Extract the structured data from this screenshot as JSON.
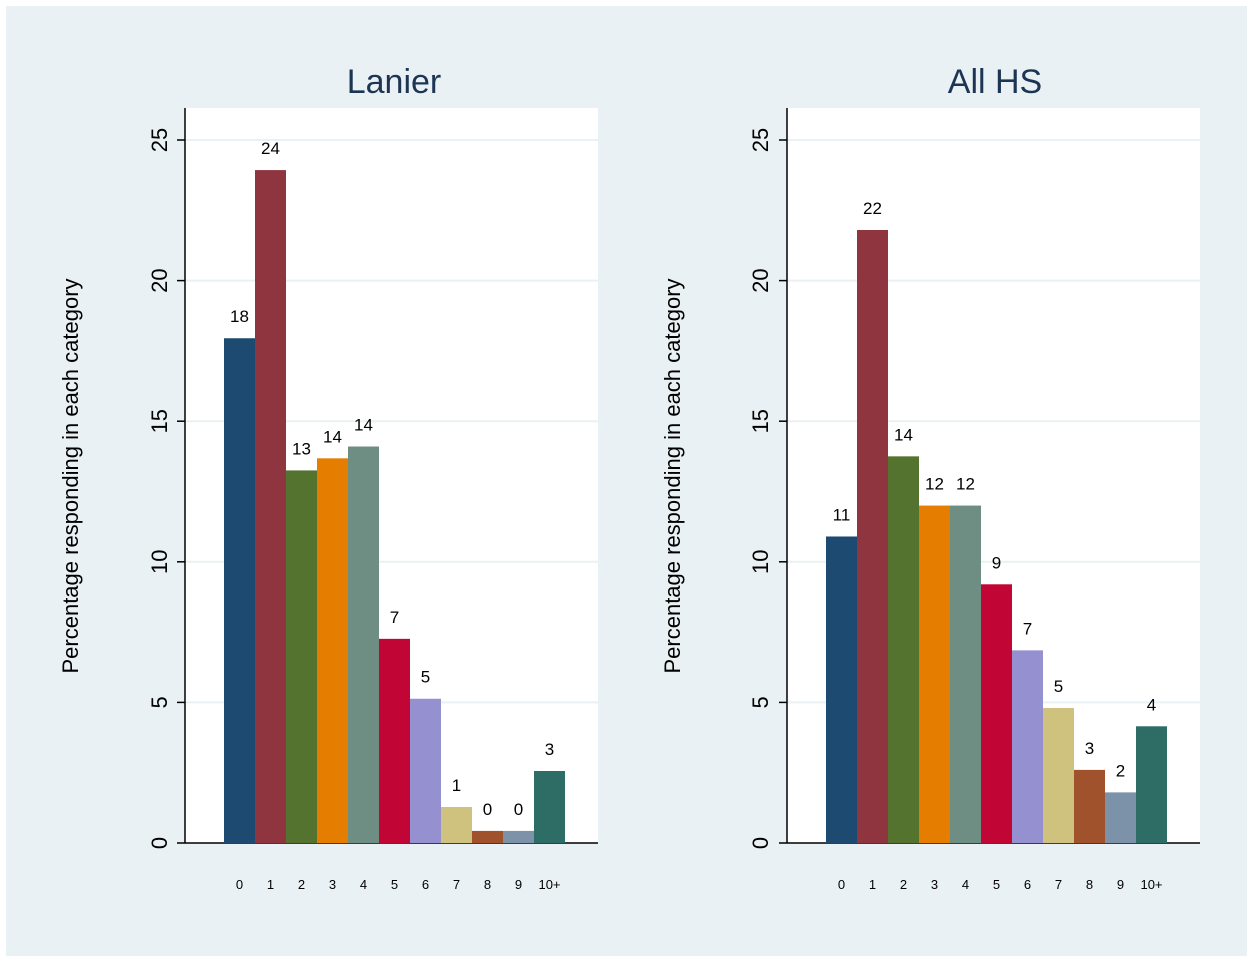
{
  "chart_data": [
    {
      "type": "bar",
      "title": "Lanier",
      "xlabel": "",
      "ylabel": "Percentage responding in each category",
      "ylim": [
        0,
        25
      ],
      "yticks": [
        0,
        5,
        10,
        15,
        20,
        25
      ],
      "categories": [
        "0",
        "1",
        "2",
        "3",
        "4",
        "5",
        "6",
        "7",
        "8",
        "9",
        "10+"
      ],
      "values": [
        17.95,
        23.93,
        13.25,
        13.68,
        14.1,
        7.26,
        5.13,
        1.28,
        0.43,
        0.43,
        2.56
      ],
      "data_labels": [
        "18",
        "24",
        "13",
        "14",
        "14",
        "7",
        "5",
        "1",
        "0",
        "0",
        "3"
      ],
      "grid": true
    },
    {
      "type": "bar",
      "title": "All HS",
      "xlabel": "",
      "ylabel": "Percentage responding in each category",
      "ylim": [
        0,
        25
      ],
      "yticks": [
        0,
        5,
        10,
        15,
        20,
        25
      ],
      "categories": [
        "0",
        "1",
        "2",
        "3",
        "4",
        "5",
        "6",
        "7",
        "8",
        "9",
        "10+"
      ],
      "values": [
        10.9,
        21.8,
        13.75,
        12.0,
        12.0,
        9.2,
        6.85,
        4.8,
        2.6,
        1.8,
        4.15
      ],
      "data_labels": [
        "11",
        "22",
        "14",
        "12",
        "12",
        "9",
        "7",
        "5",
        "3",
        "2",
        "4"
      ],
      "grid": true
    }
  ],
  "colors": [
    "#1c4a70",
    "#8e353f",
    "#54732e",
    "#e57e00",
    "#6e8e84",
    "#c10534",
    "#9591d1",
    "#cfc27f",
    "#a0522d",
    "#7b92a8",
    "#2d6d66"
  ]
}
